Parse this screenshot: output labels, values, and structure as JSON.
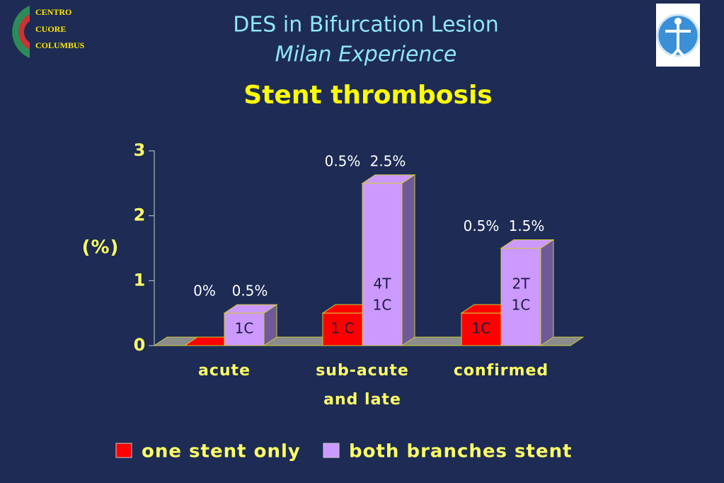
{
  "header": {
    "logo_lines": [
      "CENTRO",
      "CUORE",
      "COLUMBUS"
    ]
  },
  "chart_data": {
    "type": "bar3d",
    "title": "DES in Bifurcation Lesion",
    "subtitle": "Milan Experience",
    "heading": "Stent thrombosis",
    "y_label": "(%)",
    "categories": [
      [
        "acute"
      ],
      [
        "sub-acute",
        "and late"
      ],
      [
        "confirmed"
      ]
    ],
    "series": [
      {
        "name": "one stent only",
        "color": "#ff0000",
        "side_color": "#8a0000",
        "values": [
          0,
          0.5,
          0.5
        ],
        "value_labels": [
          "0%",
          "0.5%",
          "0.5%"
        ],
        "inner_labels": [
          null,
          [
            "1 C"
          ],
          [
            "1C"
          ]
        ]
      },
      {
        "name": "both branches stent",
        "color": "#cc99ff",
        "side_color": "#6e5a99",
        "values": [
          0.5,
          2.5,
          1.5
        ],
        "value_labels": [
          "0.5%",
          "2.5%",
          "1.5%"
        ],
        "inner_labels": [
          [
            "1C"
          ],
          [
            "4T",
            "1C"
          ],
          [
            "2T",
            "1C"
          ]
        ]
      }
    ],
    "ylim": [
      0,
      3
    ],
    "yticks": [
      0,
      1,
      2,
      3
    ]
  }
}
